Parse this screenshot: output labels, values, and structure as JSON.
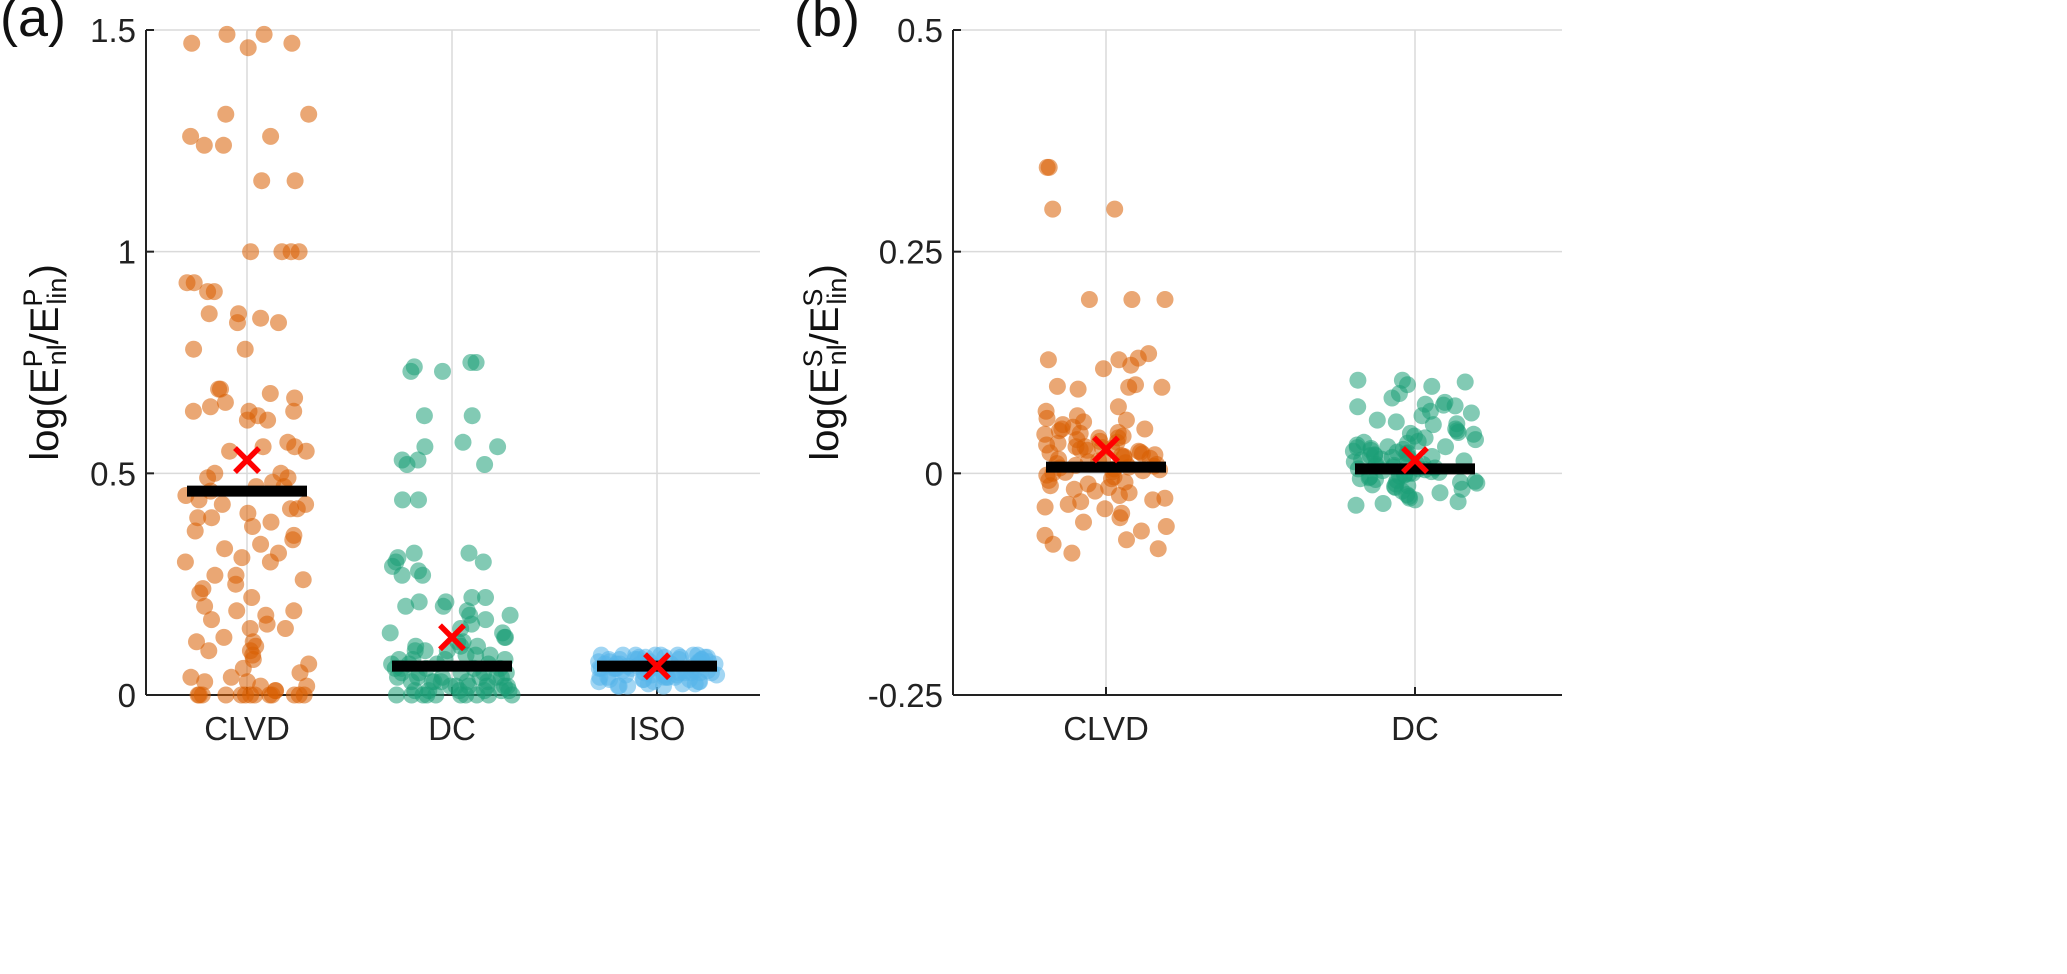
{
  "chart_data": [
    {
      "type": "scatter",
      "panel_label": "(a)",
      "ylabel": {
        "prefix": "log(E",
        "sup1": "P",
        "sub1": "nl",
        "mid": "/E",
        "sup2": "P",
        "sub2": "lin",
        "suffix": ")"
      },
      "ylim": [
        0,
        1.5
      ],
      "yticks": [
        0,
        0.5,
        1,
        1.5
      ],
      "ytick_labels": [
        "0",
        "0.5",
        "1",
        "1.5"
      ],
      "categories": [
        "CLVD",
        "DC",
        "ISO"
      ],
      "grid": true,
      "series": [
        {
          "category": "CLVD",
          "color": "#D95F02",
          "median": 0.46,
          "mean": 0.53,
          "values": [
            1.49,
            1.49,
            1.47,
            1.47,
            1.46,
            1.31,
            1.31,
            1.26,
            1.26,
            1.24,
            1.24,
            1.16,
            1.16,
            1.0,
            1.0,
            1.0,
            1.0,
            0.93,
            0.93,
            0.91,
            0.91,
            0.86,
            0.86,
            0.85,
            0.84,
            0.84,
            0.78,
            0.78,
            0.69,
            0.69,
            0.68,
            0.67,
            0.66,
            0.65,
            0.64,
            0.64,
            0.64,
            0.63,
            0.62,
            0.62,
            0.57,
            0.56,
            0.56,
            0.55,
            0.55,
            0.5,
            0.5,
            0.49,
            0.49,
            0.48,
            0.47,
            0.47,
            0.46,
            0.45,
            0.44,
            0.43,
            0.43,
            0.42,
            0.42,
            0.41,
            0.4,
            0.4,
            0.39,
            0.38,
            0.37,
            0.36,
            0.35,
            0.34,
            0.33,
            0.32,
            0.31,
            0.3,
            0.3,
            0.27,
            0.27,
            0.26,
            0.25,
            0.24,
            0.23,
            0.22,
            0.2,
            0.19,
            0.19,
            0.18,
            0.17,
            0.16,
            0.15,
            0.15,
            0.13,
            0.12,
            0.12,
            0.11,
            0.1,
            0.1,
            0.09,
            0.08,
            0.07,
            0.06,
            0.05,
            0.04,
            0.04,
            0.03,
            0.03,
            0.02,
            0.02,
            0.01,
            0.01,
            0.0,
            0.0,
            0.0,
            0.0,
            0.0,
            0.0,
            0.0,
            0.0,
            0.0,
            0.0,
            0.0,
            0.0,
            0.0
          ]
        },
        {
          "category": "DC",
          "color": "#1B9E77",
          "median": 0.065,
          "mean": 0.13,
          "values": [
            0.75,
            0.75,
            0.74,
            0.73,
            0.73,
            0.63,
            0.63,
            0.57,
            0.56,
            0.56,
            0.53,
            0.53,
            0.52,
            0.52,
            0.44,
            0.44,
            0.32,
            0.32,
            0.31,
            0.3,
            0.3,
            0.29,
            0.28,
            0.27,
            0.27,
            0.22,
            0.22,
            0.21,
            0.21,
            0.2,
            0.2,
            0.19,
            0.18,
            0.18,
            0.17,
            0.16,
            0.15,
            0.14,
            0.14,
            0.13,
            0.13,
            0.12,
            0.12,
            0.11,
            0.11,
            0.11,
            0.1,
            0.1,
            0.1,
            0.09,
            0.09,
            0.09,
            0.08,
            0.08,
            0.08,
            0.08,
            0.07,
            0.07,
            0.07,
            0.07,
            0.06,
            0.06,
            0.06,
            0.06,
            0.06,
            0.05,
            0.05,
            0.05,
            0.05,
            0.05,
            0.04,
            0.04,
            0.04,
            0.04,
            0.04,
            0.04,
            0.03,
            0.03,
            0.03,
            0.03,
            0.03,
            0.03,
            0.02,
            0.02,
            0.02,
            0.02,
            0.02,
            0.02,
            0.01,
            0.01,
            0.01,
            0.01,
            0.01,
            0.01,
            0.0,
            0.0,
            0.0,
            0.0,
            0.0,
            0.0,
            0.0,
            0.0,
            0.0,
            0.0
          ]
        },
        {
          "category": "ISO",
          "color": "#56B4E9",
          "median": 0.065,
          "mean": 0.065,
          "values": [
            0.09,
            0.09,
            0.09,
            0.09,
            0.09,
            0.09,
            0.09,
            0.09,
            0.085,
            0.085,
            0.085,
            0.085,
            0.085,
            0.085,
            0.08,
            0.08,
            0.08,
            0.08,
            0.08,
            0.08,
            0.08,
            0.075,
            0.075,
            0.075,
            0.075,
            0.075,
            0.075,
            0.07,
            0.07,
            0.07,
            0.07,
            0.07,
            0.07,
            0.07,
            0.065,
            0.065,
            0.065,
            0.065,
            0.065,
            0.065,
            0.06,
            0.06,
            0.06,
            0.06,
            0.06,
            0.06,
            0.06,
            0.055,
            0.055,
            0.055,
            0.055,
            0.055,
            0.05,
            0.05,
            0.05,
            0.05,
            0.05,
            0.05,
            0.045,
            0.045,
            0.045,
            0.045,
            0.045,
            0.04,
            0.04,
            0.04,
            0.04,
            0.04,
            0.04,
            0.035,
            0.035,
            0.035,
            0.035,
            0.03,
            0.03,
            0.03,
            0.03,
            0.025,
            0.025,
            0.025,
            0.02,
            0.02,
            0.02,
            0.02
          ]
        }
      ]
    },
    {
      "type": "scatter",
      "panel_label": "(b)",
      "ylabel": {
        "prefix": "log(E",
        "sup1": "S",
        "sub1": "nl",
        "mid": "/E",
        "sup2": "S",
        "sub2": "lin",
        "suffix": ")"
      },
      "ylim": [
        -0.25,
        0.5
      ],
      "yticks": [
        -0.25,
        0,
        0.25,
        0.5
      ],
      "ytick_labels": [
        "-0.25",
        "0",
        "0.25",
        "0.5"
      ],
      "categories": [
        "CLVD",
        "DC"
      ],
      "grid": true,
      "series": [
        {
          "category": "CLVD",
          "color": "#D95F02",
          "median": 0.007,
          "mean": 0.027,
          "values": [
            0.345,
            0.345,
            0.298,
            0.298,
            0.196,
            0.196,
            0.196,
            0.135,
            0.13,
            0.128,
            0.128,
            0.122,
            0.118,
            0.1,
            0.098,
            0.097,
            0.097,
            0.095,
            0.075,
            0.07,
            0.065,
            0.062,
            0.06,
            0.058,
            0.055,
            0.052,
            0.05,
            0.05,
            0.048,
            0.046,
            0.045,
            0.044,
            0.042,
            0.04,
            0.04,
            0.038,
            0.036,
            0.035,
            0.034,
            0.032,
            0.03,
            0.03,
            0.029,
            0.028,
            0.027,
            0.026,
            0.025,
            0.024,
            0.023,
            0.022,
            0.021,
            0.02,
            0.019,
            0.018,
            0.017,
            0.016,
            0.015,
            0.014,
            0.013,
            0.012,
            0.011,
            0.01,
            0.009,
            0.008,
            0.007,
            0.006,
            0.005,
            0.004,
            0.003,
            0.002,
            0.001,
            0.0,
            -0.002,
            -0.004,
            -0.006,
            -0.008,
            -0.01,
            -0.012,
            -0.014,
            -0.016,
            -0.018,
            -0.02,
            -0.022,
            -0.025,
            -0.028,
            -0.03,
            -0.032,
            -0.035,
            -0.038,
            -0.04,
            -0.045,
            -0.05,
            -0.055,
            -0.06,
            -0.065,
            -0.07,
            -0.075,
            -0.08,
            -0.085,
            -0.09
          ]
        },
        {
          "category": "DC",
          "color": "#1B9E77",
          "median": 0.005,
          "mean": 0.015,
          "values": [
            0.105,
            0.105,
            0.103,
            0.1,
            0.098,
            0.09,
            0.085,
            0.08,
            0.078,
            0.077,
            0.076,
            0.075,
            0.07,
            0.068,
            0.065,
            0.06,
            0.058,
            0.056,
            0.055,
            0.05,
            0.048,
            0.046,
            0.045,
            0.044,
            0.042,
            0.04,
            0.038,
            0.036,
            0.035,
            0.034,
            0.032,
            0.03,
            0.03,
            0.029,
            0.028,
            0.027,
            0.026,
            0.025,
            0.024,
            0.023,
            0.022,
            0.021,
            0.02,
            0.02,
            0.019,
            0.018,
            0.017,
            0.016,
            0.015,
            0.014,
            0.013,
            0.012,
            0.011,
            0.01,
            0.01,
            0.009,
            0.008,
            0.007,
            0.006,
            0.005,
            0.005,
            0.004,
            0.003,
            0.002,
            0.001,
            0.0,
            0.0,
            -0.001,
            -0.002,
            -0.003,
            -0.004,
            -0.005,
            -0.006,
            -0.007,
            -0.008,
            -0.009,
            -0.01,
            -0.011,
            -0.012,
            -0.013,
            -0.014,
            -0.015,
            -0.016,
            -0.018,
            -0.02,
            -0.022,
            -0.024,
            -0.026,
            -0.028,
            -0.03,
            -0.032,
            -0.034,
            -0.036
          ]
        }
      ]
    }
  ],
  "colors": {
    "mean_marker": "#FF0000",
    "median_bar": "#000000",
    "grid": "#DADADA",
    "axis": "#222222"
  }
}
